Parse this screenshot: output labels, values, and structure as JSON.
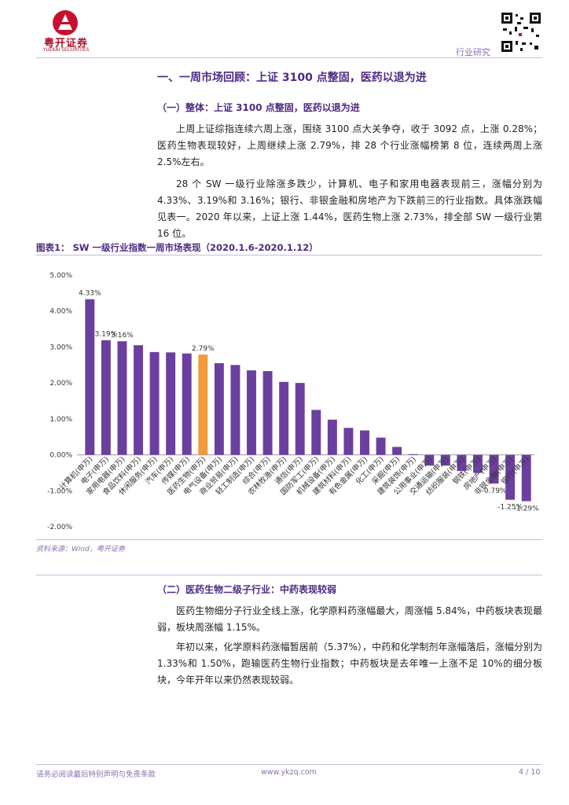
{
  "header": {
    "brand_cn": "粤开证券",
    "brand_en": "YUEKAI SECURITIES",
    "section_label": "行业研究"
  },
  "heading1": "一、一周市场回顾：上证 3100 点整固，医药以退为进",
  "section1": {
    "heading": "（一）整体：上证 3100 点整固，医药以退为进",
    "para1": "上周上证综指连续六周上涨，围绕 3100 点大关争夺，收于 3092 点，上涨 0.28%；医药生物表现较好，上周继续上涨 2.79%，排 28 个行业涨幅榜第 8 位，连续两周上涨 2.5%左右。",
    "para2": "28 个 SW 一级行业除涨多跌少，计算机、电子和家用电器表现前三，涨幅分别为 4.33%、3.19%和 3.16%；银行、非银金融和房地产为下跌前三的行业指数。具体涨跌幅见表一。2020 年以来，上证上涨 1.44%，医药生物上涨 2.73%，排全部 SW 一级行业第 16 位。"
  },
  "figure": {
    "title": "图表1：   SW 一级行业指数一周市场表现（2020.1.6-2020.1.12）",
    "source": "资料来源：Wind，粤开证券"
  },
  "section2": {
    "heading": "（二）医药生物二级子行业：中药表现较弱",
    "para1": "医药生物细分子行业全线上涨，化学原料药涨幅最大，周涨幅 5.84%，中药板块表现最弱，板块周涨幅 1.15%。",
    "para2": "年初以来，化学原料药涨幅暂居前（5.37%），中药和化学制剂年涨幅落后，涨幅分别为 1.33%和 1.50%，跑输医药生物行业指数；中药板块是去年唯一上涨不足 10%的细分板块，今年开年以来仍然表现较弱。"
  },
  "footer": {
    "disclaimer": "请务必阅读最后特别声明与免责条款",
    "website": "www.ykzq.com",
    "page": "4 / 10"
  },
  "colors": {
    "bar": "#6b3fa0",
    "highlight": "#f39a3b",
    "accent": "#4e2a84"
  },
  "chart_data": {
    "type": "bar",
    "title": "SW 一级行业指数一周市场表现（2020.1.6-2020.1.12）",
    "categories": [
      "计算机(申万)",
      "电子(申万)",
      "家用电器(申万)",
      "食品饮料(申万)",
      "休闲服务(申万)",
      "汽车(申万)",
      "传媒(申万)",
      "医药生物(申万)",
      "电气设备(申万)",
      "商业贸易(申万)",
      "轻工制造(申万)",
      "综合(申万)",
      "农林牧渔(申万)",
      "通信(申万)",
      "国防军工(申万)",
      "机械设备(申万)",
      "建筑材料(申万)",
      "有色金属(申万)",
      "化工(申万)",
      "采掘(申万)",
      "建筑装饰(申万)",
      "公用事业(申万)",
      "交通运输(申万)",
      "纺织服装(申万)",
      "钢铁(申万)",
      "房地产(申万)",
      "非银金融(申万)",
      "银行(申万)"
    ],
    "values": [
      4.33,
      3.19,
      3.16,
      3.05,
      2.86,
      2.85,
      2.82,
      2.79,
      2.55,
      2.5,
      2.35,
      2.33,
      2.03,
      2.0,
      1.25,
      0.98,
      0.75,
      0.68,
      0.48,
      0.22,
      0.02,
      -0.3,
      -0.3,
      -0.45,
      -0.5,
      -0.8,
      -1.25,
      -1.29
    ],
    "highlight_category": "医药生物(申万)",
    "data_labels": [
      {
        "category": "计算机(申万)",
        "text": "4.33%"
      },
      {
        "category": "电子(申万)",
        "text": "3.19%"
      },
      {
        "category": "家用电器(申万)",
        "text": "3.16%"
      },
      {
        "category": "医药生物(申万)",
        "text": "2.79%"
      },
      {
        "category": "房地产(申万)",
        "text": "-0.79%"
      },
      {
        "category": "非银金融(申万)",
        "text": "-1.25%"
      },
      {
        "category": "银行(申万)",
        "text": "-1.29%"
      }
    ],
    "y_ticks": [
      "5.00%",
      "4.00%",
      "3.00%",
      "2.00%",
      "1.00%",
      "0.00%",
      "-1.00%",
      "-2.00%"
    ],
    "ylim": [
      -2,
      5
    ],
    "xlabel": "",
    "ylabel": ""
  }
}
